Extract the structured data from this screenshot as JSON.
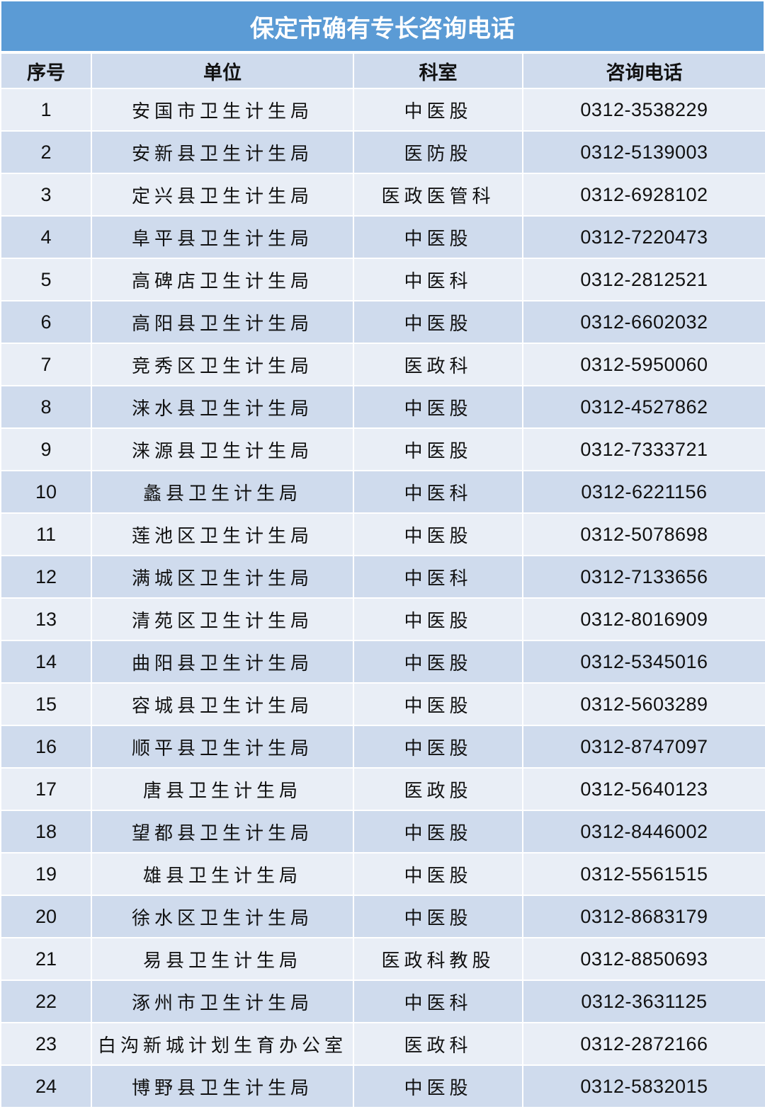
{
  "title": "保定市确有专长咨询电话",
  "headers": [
    "序号",
    "单位",
    "科室",
    "咨询电话"
  ],
  "colors": {
    "title_bg": "#5b9bd5",
    "row_light": "#e9eef6",
    "row_dark": "#cfdbed"
  },
  "rows": [
    {
      "no": "1",
      "unit": "安国市卫生计生局",
      "dept": "中医股",
      "phone": "0312-3538229"
    },
    {
      "no": "2",
      "unit": "安新县卫生计生局",
      "dept": "医防股",
      "phone": "0312-5139003"
    },
    {
      "no": "3",
      "unit": "定兴县卫生计生局",
      "dept": "医政医管科",
      "phone": "0312-6928102"
    },
    {
      "no": "4",
      "unit": "阜平县卫生计生局",
      "dept": "中医股",
      "phone": "0312-7220473"
    },
    {
      "no": "5",
      "unit": "高碑店卫生计生局",
      "dept": "中医科",
      "phone": "0312-2812521"
    },
    {
      "no": "6",
      "unit": "高阳县卫生计生局",
      "dept": "中医股",
      "phone": "0312-6602032"
    },
    {
      "no": "7",
      "unit": "竞秀区卫生计生局",
      "dept": "医政科",
      "phone": "0312-5950060"
    },
    {
      "no": "8",
      "unit": "涞水县卫生计生局",
      "dept": "中医股",
      "phone": "0312-4527862"
    },
    {
      "no": "9",
      "unit": "涞源县卫生计生局",
      "dept": "中医股",
      "phone": "0312-7333721"
    },
    {
      "no": "10",
      "unit": "蠡县卫生计生局",
      "dept": "中医科",
      "phone": "0312-6221156"
    },
    {
      "no": "11",
      "unit": "莲池区卫生计生局",
      "dept": "中医股",
      "phone": "0312-5078698"
    },
    {
      "no": "12",
      "unit": "满城区卫生计生局",
      "dept": "中医科",
      "phone": "0312-7133656"
    },
    {
      "no": "13",
      "unit": "清苑区卫生计生局",
      "dept": "中医股",
      "phone": "0312-8016909"
    },
    {
      "no": "14",
      "unit": "曲阳县卫生计生局",
      "dept": "中医股",
      "phone": "0312-5345016"
    },
    {
      "no": "15",
      "unit": "容城县卫生计生局",
      "dept": "中医股",
      "phone": "0312-5603289"
    },
    {
      "no": "16",
      "unit": "顺平县卫生计生局",
      "dept": "中医股",
      "phone": "0312-8747097"
    },
    {
      "no": "17",
      "unit": "唐县卫生计生局",
      "dept": "医政股",
      "phone": "0312-5640123"
    },
    {
      "no": "18",
      "unit": "望都县卫生计生局",
      "dept": "中医股",
      "phone": "0312-8446002"
    },
    {
      "no": "19",
      "unit": "雄县卫生计生局",
      "dept": "中医股",
      "phone": "0312-5561515"
    },
    {
      "no": "20",
      "unit": "徐水区卫生计生局",
      "dept": "中医股",
      "phone": "0312-8683179"
    },
    {
      "no": "21",
      "unit": "易县卫生计生局",
      "dept": "医政科教股",
      "phone": "0312-8850693"
    },
    {
      "no": "22",
      "unit": "涿州市卫生计生局",
      "dept": "中医科",
      "phone": "0312-3631125"
    },
    {
      "no": "23",
      "unit": "白沟新城计划生育办公室",
      "dept": "医政科",
      "phone": "0312-2872166"
    },
    {
      "no": "24",
      "unit": "博野县卫生计生局",
      "dept": "中医股",
      "phone": "0312-5832015"
    }
  ]
}
